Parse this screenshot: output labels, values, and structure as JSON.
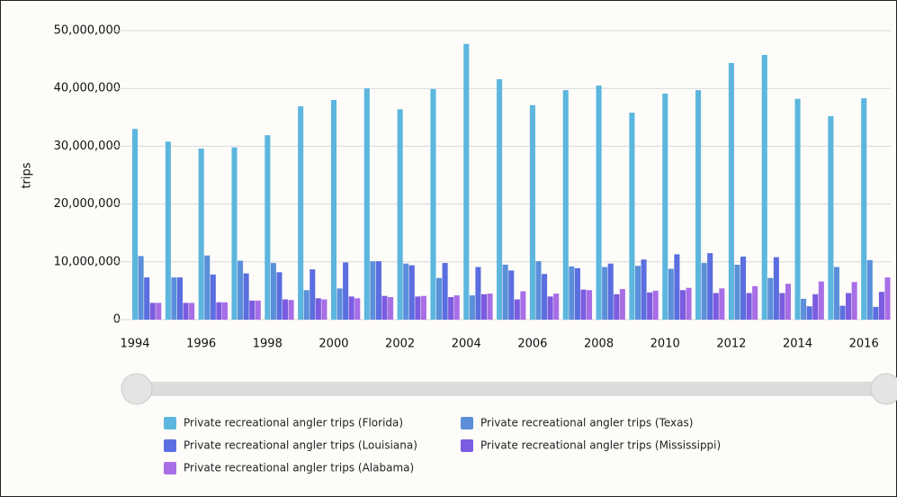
{
  "chart_data": {
    "type": "bar",
    "y_label": "trips",
    "categories": [
      "1994",
      null,
      "1996",
      null,
      "1998",
      null,
      "2000",
      null,
      "2002",
      null,
      "2004",
      null,
      "2006",
      null,
      "2008",
      null,
      "2010",
      null,
      "2012",
      null,
      "2014",
      null,
      "2016"
    ],
    "series": [
      {
        "name": "Private recreational angler trips (Florida)",
        "color": "#5cb6de",
        "values": [
          33000000.0,
          30800000.0,
          29600000.0,
          29800000.0,
          31900000.0,
          36900000.0,
          38000000.0,
          40000000.0,
          36400000.0,
          39900000.0,
          47700000.0,
          41600000.0,
          37100000.0,
          39700000.0,
          40500000.0,
          35800000.0,
          39100000.0,
          39700000.0,
          44400000.0,
          45800000.0,
          38200000.0,
          35200000.0,
          38300000.0
        ]
      },
      {
        "name": "Private recreational angler trips (Texas)",
        "color": "#5b8fd9",
        "values": [
          11000000.0,
          7300000.0,
          11100000.0,
          10200000.0,
          9800000.0,
          5100000.0,
          5400000.0,
          10100000.0,
          9700000.0,
          7200000.0,
          4200000.0,
          9500000.0,
          10100000.0,
          9200000.0,
          9100000.0,
          9300000.0,
          8800000.0,
          9800000.0,
          9500000.0,
          7200000.0,
          3600000.0,
          9100000.0,
          10300000.0
        ]
      },
      {
        "name": "Private recreational angler trips (Louisiana)",
        "color": "#5a6ee0",
        "values": [
          7300000.0,
          7300000.0,
          7800000.0,
          8000000.0,
          8200000.0,
          8700000.0,
          9900000.0,
          10100000.0,
          9400000.0,
          9800000.0,
          9100000.0,
          8500000.0,
          7900000.0,
          8900000.0,
          9700000.0,
          10400000.0,
          11300000.0,
          11500000.0,
          10900000.0,
          10800000.0,
          2300000.0,
          2400000.0,
          2200000.0
        ]
      },
      {
        "name": "Private recreational angler trips (Mississippi)",
        "color": "#7b5ce0",
        "values": [
          2900000.0,
          2900000.0,
          3000000.0,
          3300000.0,
          3500000.0,
          3700000.0,
          4000000.0,
          4100000.0,
          4000000.0,
          3900000.0,
          4400000.0,
          3500000.0,
          4000000.0,
          5200000.0,
          4400000.0,
          4700000.0,
          5100000.0,
          4600000.0,
          4600000.0,
          4600000.0,
          4400000.0,
          4600000.0,
          4800000.0
        ]
      },
      {
        "name": "Private recreational angler trips (Alabama)",
        "color": "#a86ee6",
        "values": [
          2900000.0,
          2900000.0,
          3000000.0,
          3300000.0,
          3400000.0,
          3500000.0,
          3700000.0,
          3900000.0,
          4100000.0,
          4200000.0,
          4500000.0,
          4900000.0,
          4500000.0,
          5100000.0,
          5300000.0,
          5000000.0,
          5500000.0,
          5400000.0,
          5800000.0,
          6200000.0,
          6600000.0,
          6500000.0,
          7300000.0
        ]
      }
    ],
    "ylim": [
      0,
      50000000
    ],
    "yticks": [
      0,
      {
        "value": 10000000,
        "label": "10,000,000"
      },
      {
        "value": 20000000,
        "label": "20,000,000"
      },
      {
        "value": 30000000,
        "label": "30,000,000"
      },
      {
        "value": 40000000,
        "label": "40,000,000"
      },
      {
        "value": 50000000,
        "label": "50,000,000"
      }
    ],
    "grid": true
  }
}
